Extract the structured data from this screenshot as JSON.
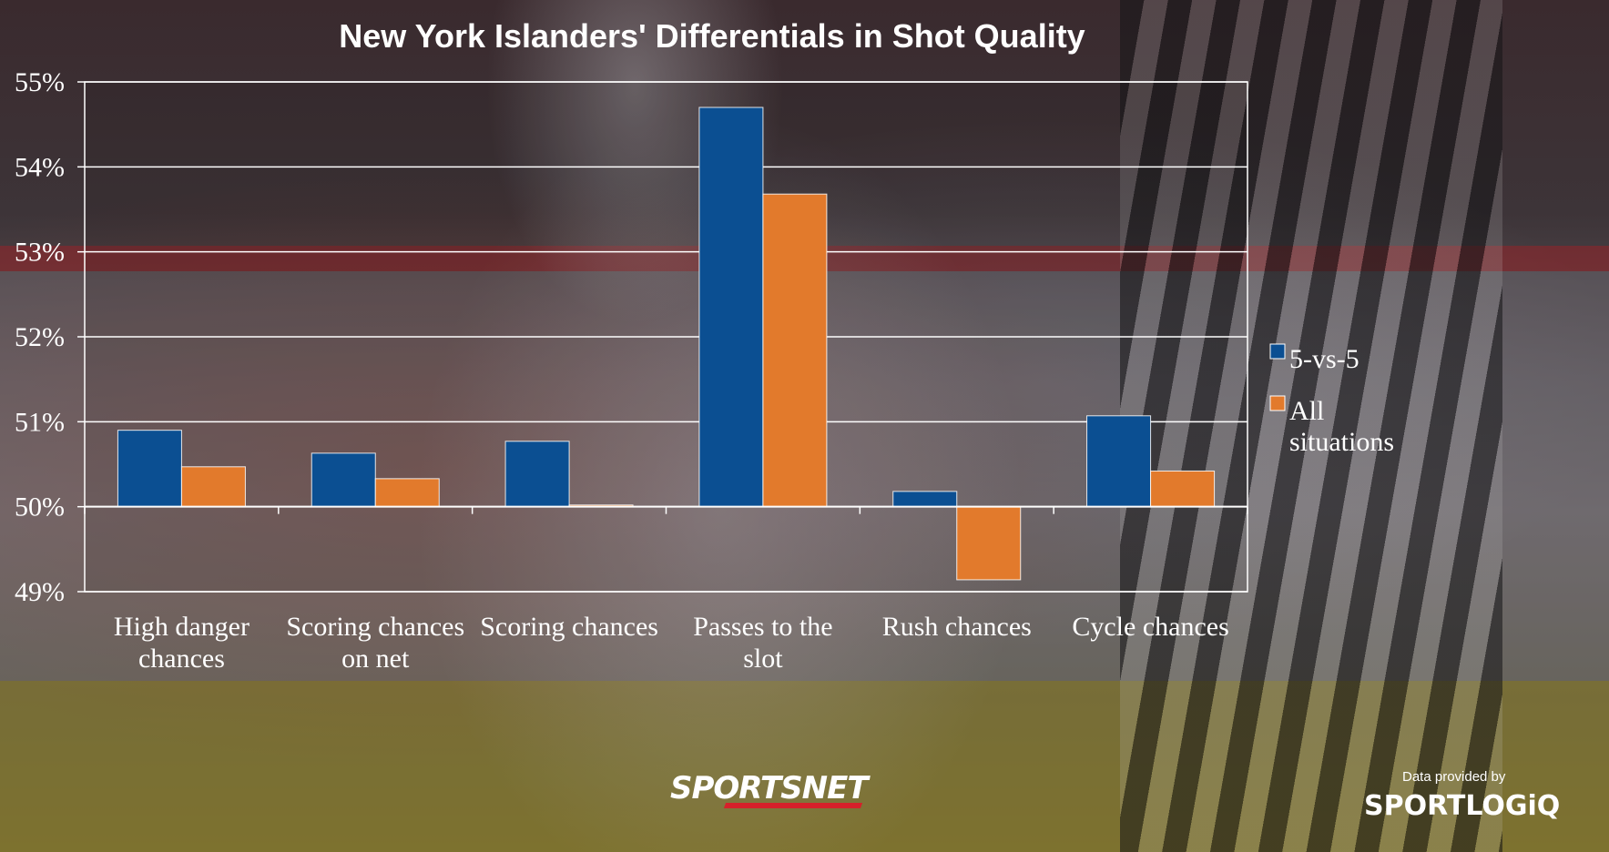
{
  "chart_data": {
    "type": "bar",
    "title": "New York Islanders' Differentials in Shot Quality",
    "xlabel": "",
    "ylabel": "",
    "ylim": [
      49,
      55
    ],
    "yticks": [
      "49%",
      "50%",
      "51%",
      "52%",
      "53%",
      "54%",
      "55%"
    ],
    "ytick_values": [
      49,
      50,
      51,
      52,
      53,
      54,
      55
    ],
    "baseline": 50,
    "grid": true,
    "legend_position": "right",
    "categories": [
      [
        "High danger",
        "chances"
      ],
      [
        "Scoring chances",
        "on net"
      ],
      [
        "Scoring chances"
      ],
      [
        "Passes to the",
        "slot"
      ],
      [
        "Rush chances"
      ],
      [
        "Cycle chances"
      ]
    ],
    "series": [
      {
        "name": "5-vs-5",
        "color": "#0b4f92",
        "values": [
          50.9,
          50.63,
          50.77,
          54.7,
          50.18,
          51.07
        ]
      },
      {
        "name": "All situations",
        "color": "#e27a2c",
        "values": [
          50.47,
          50.33,
          50.02,
          53.68,
          49.14,
          50.42
        ]
      }
    ],
    "legend": [
      {
        "lines": [
          "5-vs-5"
        ],
        "color": "#0b4f92"
      },
      {
        "lines": [
          "All",
          "situations"
        ],
        "color": "#e27a2c"
      }
    ]
  },
  "footer": {
    "sportsnet_logo": "SPORTSNET",
    "provided_by": "Data provided by",
    "sportlogiq_logo": "SPORTLOGiQ"
  }
}
